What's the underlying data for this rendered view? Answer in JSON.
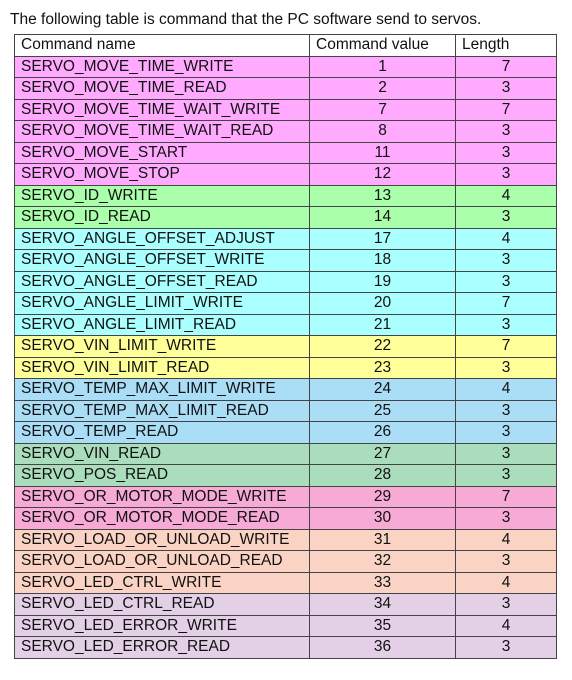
{
  "intro_text": "The following table is command that the PC software send to servos.",
  "table": {
    "headers": [
      "Command name",
      "Command value",
      "Length"
    ],
    "groups": [
      {
        "color": "#ffaaff",
        "rows": [
          [
            "SERVO_MOVE_TIME_WRITE",
            "1",
            "7"
          ],
          [
            "SERVO_MOVE_TIME_READ",
            "2",
            "3"
          ],
          [
            "SERVO_MOVE_TIME_WAIT_WRITE",
            "7",
            "7"
          ],
          [
            "SERVO_MOVE_TIME_WAIT_READ",
            "8",
            "3"
          ],
          [
            "SERVO_MOVE_START",
            "11",
            "3"
          ],
          [
            "SERVO_MOVE_STOP",
            "12",
            "3"
          ]
        ]
      },
      {
        "color": "#aaffaa",
        "rows": [
          [
            "SERVO_ID_WRITE",
            "13",
            "4"
          ],
          [
            "SERVO_ID_READ",
            "14",
            "3"
          ]
        ]
      },
      {
        "color": "#aaffff",
        "rows": [
          [
            "SERVO_ANGLE_OFFSET_ADJUST",
            "17",
            "4"
          ],
          [
            "SERVO_ANGLE_OFFSET_WRITE",
            "18",
            "3"
          ],
          [
            "SERVO_ANGLE_OFFSET_READ",
            "19",
            "3"
          ],
          [
            "SERVO_ANGLE_LIMIT_WRITE",
            "20",
            "7"
          ],
          [
            "SERVO_ANGLE_LIMIT_READ",
            "21",
            "3"
          ]
        ]
      },
      {
        "color": "#ffff99",
        "rows": [
          [
            "SERVO_VIN_LIMIT_WRITE",
            "22",
            "7"
          ],
          [
            "SERVO_VIN_LIMIT_READ",
            "23",
            "3"
          ]
        ]
      },
      {
        "color": "#aaddf6",
        "rows": [
          [
            "SERVO_TEMP_MAX_LIMIT_WRITE",
            "24",
            "4"
          ],
          [
            "SERVO_TEMP_MAX_LIMIT_READ",
            "25",
            "3"
          ],
          [
            "SERVO_TEMP_READ",
            "26",
            "3"
          ]
        ]
      },
      {
        "color": "#aaddbb",
        "rows": [
          [
            "SERVO_VIN_READ",
            "27",
            "3"
          ],
          [
            "SERVO_POS_READ",
            "28",
            "3"
          ]
        ]
      },
      {
        "color": "#f7aad6",
        "rows": [
          [
            "SERVO_OR_MOTOR_MODE_WRITE",
            "29",
            "7"
          ],
          [
            "SERVO_OR_MOTOR_MODE_READ",
            "30",
            "3"
          ]
        ]
      },
      {
        "color": "#fbd3c4",
        "rows": [
          [
            "SERVO_LOAD_OR_UNLOAD_WRITE",
            "31",
            "4"
          ],
          [
            "SERVO_LOAD_OR_UNLOAD_READ",
            "32",
            "3"
          ],
          [
            "SERVO_LED_CTRL_WRITE",
            "33",
            "4"
          ]
        ]
      },
      {
        "color": "#e3cfe6",
        "rows": [
          [
            "SERVO_LED_CTRL_READ",
            "34",
            "3"
          ],
          [
            "SERVO_LED_ERROR_WRITE",
            "35",
            "4"
          ],
          [
            "SERVO_LED_ERROR_READ",
            "36",
            "3"
          ]
        ]
      }
    ]
  }
}
